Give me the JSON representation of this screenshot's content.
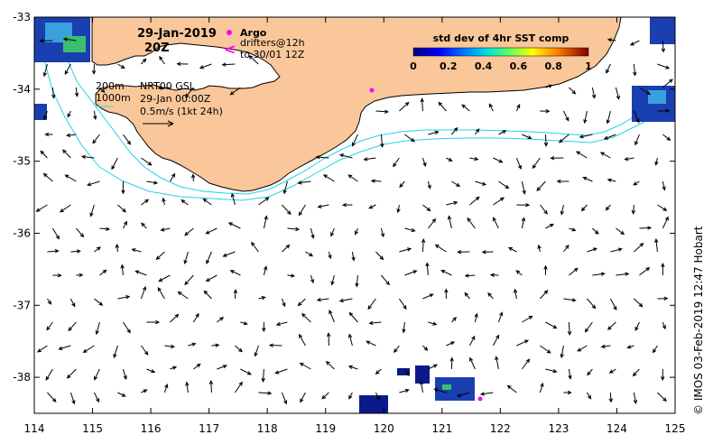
{
  "map": {
    "date": "29-Jan-2019",
    "time": "20Z",
    "argo_label": "Argo",
    "drifters_line1": "drifters@12h",
    "drifters_line2": "to 30/01 12Z",
    "drifter_symbol": "<",
    "isobath_200": "200m",
    "isobath_1000": "1000m",
    "product_line1": "NRT00 GSL",
    "product_line2": "29-Jan 00:00Z",
    "scale_label": "0.5m/s (1kt 24h)",
    "colorbar_title": "std dev of 4hr SST comp",
    "colorbar_ticks": [
      "0",
      "0.2",
      "0.4",
      "0.6",
      "0.8",
      "1"
    ],
    "credit": "© IMOS 03-Feb-2019 12:47 Hobart",
    "x_ticks": [
      "114",
      "115",
      "116",
      "117",
      "118",
      "119",
      "120",
      "121",
      "122",
      "123",
      "124",
      "125"
    ],
    "y_ticks": [
      "-33",
      "-34",
      "-35",
      "-36",
      "-37",
      "-38"
    ],
    "colors": {
      "land": "#f9c79a",
      "isobath": "#22d3e6",
      "argo": "#ff00ff",
      "sst_low": "#0a1a8a",
      "sst_mid": "#3aa0e0"
    }
  }
}
